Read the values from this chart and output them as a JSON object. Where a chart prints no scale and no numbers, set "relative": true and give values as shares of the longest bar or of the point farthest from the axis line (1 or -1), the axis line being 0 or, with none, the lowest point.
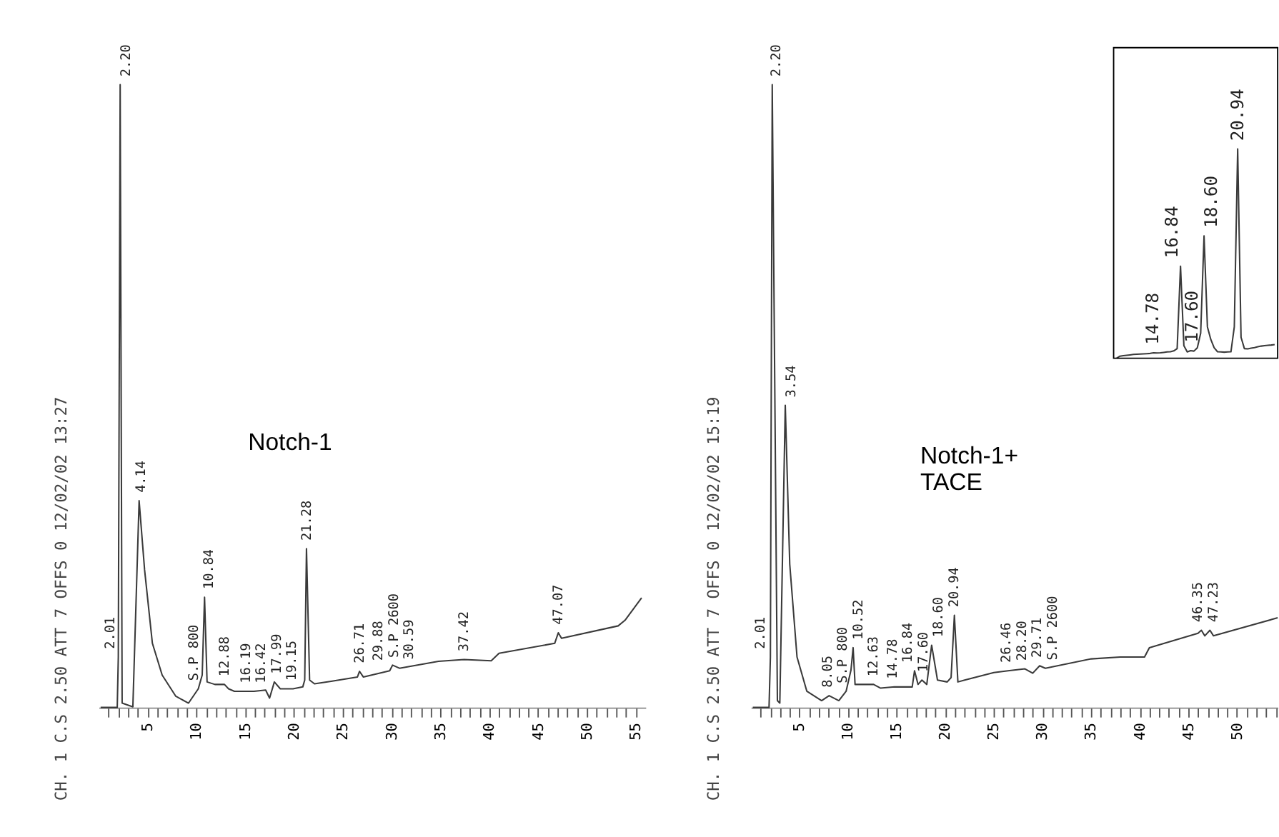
{
  "chart_data": [
    {
      "type": "line",
      "title": "Notch-1",
      "relative": true,
      "tick_labels": "x",
      "xlim": [
        0,
        56
      ],
      "xticks": [
        {
          "value": 1,
          "label": null
        },
        {
          "value": 2,
          "label": null
        },
        {
          "value": 3,
          "label": null
        },
        {
          "value": 4,
          "label": null
        },
        5,
        {
          "value": 6,
          "label": null
        },
        {
          "value": 7,
          "label": null
        },
        {
          "value": 8,
          "label": null
        },
        {
          "value": 9,
          "label": null
        },
        10,
        {
          "value": 11,
          "label": null
        },
        {
          "value": 12,
          "label": null
        },
        {
          "value": 13,
          "label": null
        },
        {
          "value": 14,
          "label": null
        },
        15,
        {
          "value": 16,
          "label": null
        },
        {
          "value": 17,
          "label": null
        },
        {
          "value": 18,
          "label": null
        },
        {
          "value": 19,
          "label": null
        },
        20,
        {
          "value": 21,
          "label": null
        },
        {
          "value": 22,
          "label": null
        },
        {
          "value": 23,
          "label": null
        },
        {
          "value": 24,
          "label": null
        },
        25,
        {
          "value": 26,
          "label": null
        },
        {
          "value": 27,
          "label": null
        },
        {
          "value": 28,
          "label": null
        },
        {
          "value": 29,
          "label": null
        },
        30,
        {
          "value": 31,
          "label": null
        },
        {
          "value": 32,
          "label": null
        },
        {
          "value": 33,
          "label": null
        },
        {
          "value": 34,
          "label": null
        },
        35,
        {
          "value": 36,
          "label": null
        },
        {
          "value": 37,
          "label": null
        },
        {
          "value": 38,
          "label": null
        },
        {
          "value": 39,
          "label": null
        },
        40,
        {
          "value": 41,
          "label": null
        },
        {
          "value": 42,
          "label": null
        },
        {
          "value": 43,
          "label": null
        },
        {
          "value": 44,
          "label": null
        },
        45,
        {
          "value": 46,
          "label": null
        },
        {
          "value": 47,
          "label": null
        },
        {
          "value": 48,
          "label": null
        },
        {
          "value": 49,
          "label": null
        },
        50,
        {
          "value": 51,
          "label": null
        },
        {
          "value": 52,
          "label": null
        },
        {
          "value": 53,
          "label": null
        },
        {
          "value": 54,
          "label": null
        },
        55
      ],
      "x": [
        0.2,
        1.9,
        2.01,
        2.2,
        2.4,
        3.5,
        4.14,
        4.7,
        5.5,
        6.5,
        7.9,
        9.2,
        10.2,
        10.6,
        10.84,
        11.1,
        11.9,
        12.88,
        13.3,
        13.9,
        15.9,
        17.1,
        17.5,
        17.99,
        18.6,
        19.9,
        20.9,
        21.1,
        21.28,
        21.6,
        22.1,
        23.8,
        26.5,
        26.71,
        27.1,
        29.8,
        30.1,
        30.8,
        34.8,
        37.42,
        40.2,
        41.0,
        46.7,
        47.07,
        47.4,
        53.2,
        53.9,
        55.6
      ],
      "series": [
        {
          "color": "#3a3a3a",
          "values": [
            0,
            0,
            0.081,
            1,
            0.007,
            0.001,
            0.332,
            0.221,
            0.103,
            0.052,
            0.018,
            0.007,
            0.03,
            0.052,
            0.177,
            0.041,
            0.037,
            0.037,
            0.03,
            0.026,
            0.026,
            0.028,
            0.015,
            0.041,
            0.03,
            0.03,
            0.033,
            0.044,
            0.255,
            0.044,
            0.038,
            0.042,
            0.049,
            0.058,
            0.049,
            0.059,
            0.068,
            0.063,
            0.074,
            0.077,
            0.075,
            0.087,
            0.103,
            0.12,
            0.111,
            0.131,
            0.14,
            0.176
          ]
        }
      ],
      "annotations": [
        "CH. 1 C.S 2.50 ATT 7 OFFS 0 12/02/02 13:27",
        {
          "text": "2.20",
          "x": 2.2,
          "y": 1
        },
        {
          "text": "2.01",
          "x": 2.01,
          "y": 0.081
        },
        {
          "text": "4.14",
          "x": 4.14,
          "y": 0.332
        },
        {
          "text": "S.P 800",
          "x": 10.2,
          "y": 0.03
        },
        {
          "text": "10.84",
          "x": 10.84,
          "y": 0.177
        },
        {
          "text": "12.88",
          "x": 12.88,
          "y": 0.037
        },
        {
          "text": "16.19",
          "x": 16.19,
          "y": 0.026
        },
        {
          "text": "16.42",
          "x": 16.42,
          "y": 0.026
        },
        {
          "text": "17.99",
          "x": 17.99,
          "y": 0.041
        },
        {
          "text": "19.15",
          "x": 19.15,
          "y": 0.03
        },
        {
          "text": "21.28",
          "x": 21.28,
          "y": 0.255
        },
        {
          "text": "26.71",
          "x": 26.71,
          "y": 0.058
        },
        {
          "text": "S.P 2600",
          "x": 30.2,
          "y": 0.067
        },
        {
          "text": "29.88",
          "x": 29.88,
          "y": 0.062
        },
        {
          "text": "30.59",
          "x": 30.59,
          "y": 0.064
        },
        {
          "text": "37.42",
          "x": 37.42,
          "y": 0.077
        },
        {
          "text": "47.07",
          "x": 47.07,
          "y": 0.12
        }
      ]
    },
    {
      "type": "line",
      "title": "Notch-1+\nTACE",
      "relative": true,
      "tick_labels": "x",
      "xlim": [
        0,
        54.2
      ],
      "xticks": [
        {
          "value": 1,
          "label": null
        },
        {
          "value": 2,
          "label": null
        },
        {
          "value": 3,
          "label": null
        },
        {
          "value": 4,
          "label": null
        },
        5,
        {
          "value": 6,
          "label": null
        },
        {
          "value": 7,
          "label": null
        },
        {
          "value": 8,
          "label": null
        },
        {
          "value": 9,
          "label": null
        },
        10,
        {
          "value": 11,
          "label": null
        },
        {
          "value": 12,
          "label": null
        },
        {
          "value": 13,
          "label": null
        },
        {
          "value": 14,
          "label": null
        },
        15,
        {
          "value": 16,
          "label": null
        },
        {
          "value": 17,
          "label": null
        },
        {
          "value": 18,
          "label": null
        },
        {
          "value": 19,
          "label": null
        },
        20,
        {
          "value": 21,
          "label": null
        },
        {
          "value": 22,
          "label": null
        },
        {
          "value": 23,
          "label": null
        },
        {
          "value": 24,
          "label": null
        },
        25,
        {
          "value": 26,
          "label": null
        },
        {
          "value": 27,
          "label": null
        },
        {
          "value": 28,
          "label": null
        },
        {
          "value": 29,
          "label": null
        },
        30,
        {
          "value": 31,
          "label": null
        },
        {
          "value": 32,
          "label": null
        },
        {
          "value": 33,
          "label": null
        },
        {
          "value": 34,
          "label": null
        },
        35,
        {
          "value": 36,
          "label": null
        },
        {
          "value": 37,
          "label": null
        },
        {
          "value": 38,
          "label": null
        },
        {
          "value": 39,
          "label": null
        },
        40,
        {
          "value": 41,
          "label": null
        },
        {
          "value": 42,
          "label": null
        },
        {
          "value": 43,
          "label": null
        },
        {
          "value": 44,
          "label": null
        },
        45,
        {
          "value": 46,
          "label": null
        },
        {
          "value": 47,
          "label": null
        },
        {
          "value": 48,
          "label": null
        },
        {
          "value": 49,
          "label": null
        },
        50,
        {
          "value": 51,
          "label": null
        },
        {
          "value": 52,
          "label": null
        },
        {
          "value": 53,
          "label": null
        },
        {
          "value": 54,
          "label": null
        }
      ],
      "x": [
        0.2,
        1.87,
        2.01,
        2.2,
        2.73,
        2.98,
        3.54,
        4.0,
        4.75,
        5.76,
        7.28,
        8.05,
        9.05,
        9.8,
        10.3,
        10.52,
        10.72,
        12.63,
        13.35,
        14.78,
        16.6,
        16.84,
        17.2,
        17.6,
        18.1,
        18.6,
        19.2,
        20.2,
        20.6,
        20.94,
        21.3,
        22.0,
        25.0,
        26.46,
        28.2,
        29.0,
        29.71,
        30.3,
        35.0,
        38.0,
        40.5,
        41.0,
        46.0,
        46.35,
        46.7,
        47.23,
        47.6,
        54.2
      ],
      "series": [
        {
          "color": "#3a3a3a",
          "values": [
            0,
            0,
            0.081,
            1,
            0.011,
            0.007,
            0.485,
            0.23,
            0.081,
            0.026,
            0.011,
            0.019,
            0.011,
            0.026,
            0.06,
            0.096,
            0.037,
            0.037,
            0.031,
            0.033,
            0.033,
            0.059,
            0.037,
            0.044,
            0.037,
            0.1,
            0.044,
            0.041,
            0.048,
            0.148,
            0.041,
            0.044,
            0.056,
            0.059,
            0.062,
            0.055,
            0.067,
            0.063,
            0.078,
            0.081,
            0.081,
            0.096,
            0.119,
            0.124,
            0.115,
            0.124,
            0.115,
            0.144
          ]
        }
      ],
      "annotations": [
        "CH. 1 C.S 2.50 ATT 7 OFFS 0 12/02/02 15:19",
        {
          "text": "2.20",
          "x": 2.2,
          "y": 1
        },
        {
          "text": "2.01",
          "x": 2.01,
          "y": 0.081
        },
        {
          "text": "3.54",
          "x": 3.54,
          "y": 0.485
        },
        {
          "text": "8.05",
          "x": 8.05,
          "y": 0.019
        },
        {
          "text": "S.P 800",
          "x": 9.8,
          "y": 0.026
        },
        {
          "text": "10.52",
          "x": 10.52,
          "y": 0.096
        },
        {
          "text": "12.63",
          "x": 12.63,
          "y": 0.037
        },
        {
          "text": "14.78",
          "x": 14.78,
          "y": 0.033
        },
        {
          "text": "16.84",
          "x": 16.84,
          "y": 0.059
        },
        {
          "text": "17.60",
          "x": 17.6,
          "y": 0.044
        },
        {
          "text": "18.60",
          "x": 18.6,
          "y": 0.1
        },
        {
          "text": "20.94",
          "x": 20.94,
          "y": 0.148
        },
        {
          "text": "26.46",
          "x": 26.46,
          "y": 0.059
        },
        {
          "text": "28.20",
          "x": 28.2,
          "y": 0.062
        },
        {
          "text": "S.P 2600",
          "x": 30.3,
          "y": 0.063
        },
        {
          "text": "29.71",
          "x": 29.71,
          "y": 0.067
        },
        {
          "text": "46.35",
          "x": 46.35,
          "y": 0.124
        },
        {
          "text": "47.23",
          "x": 47.23,
          "y": 0.124
        }
      ]
    },
    {
      "type": "line",
      "relative": true,
      "tick_labels": false,
      "categories": [
        null,
        null,
        null,
        null,
        null,
        null,
        null,
        null,
        null,
        null,
        null,
        null,
        null,
        null,
        null,
        null,
        null,
        null,
        null,
        null,
        null,
        null,
        null,
        null,
        null,
        null,
        null,
        null,
        null,
        null,
        null,
        null,
        null,
        null,
        null,
        null,
        null,
        null,
        null,
        null,
        null,
        null,
        null,
        null,
        null,
        null,
        null,
        null
      ],
      "series": [
        {
          "color": "#3a3a3a",
          "values": [
            0,
            0.01,
            0.012,
            0.014,
            0.016,
            0.018,
            0.019,
            0.02,
            0.021,
            0.022,
            0.023,
            0.026,
            0.025,
            0.026,
            0.028,
            0.03,
            0.031,
            0.035,
            0.046,
            0.44,
            0.06,
            0.03,
            0.036,
            0.034,
            0.05,
            0.12,
            0.585,
            0.15,
            0.09,
            0.05,
            0.031,
            0.03,
            0.029,
            0.03,
            0.031,
            0.15,
            1,
            0.1,
            0.046,
            0.045,
            0.048,
            0.051,
            0.055,
            0.058,
            0.06,
            0.062,
            0.063,
            0.065
          ]
        }
      ],
      "annotations": [
        "14.78",
        "16.84",
        "17.60",
        "18.60",
        "20.94"
      ]
    }
  ]
}
